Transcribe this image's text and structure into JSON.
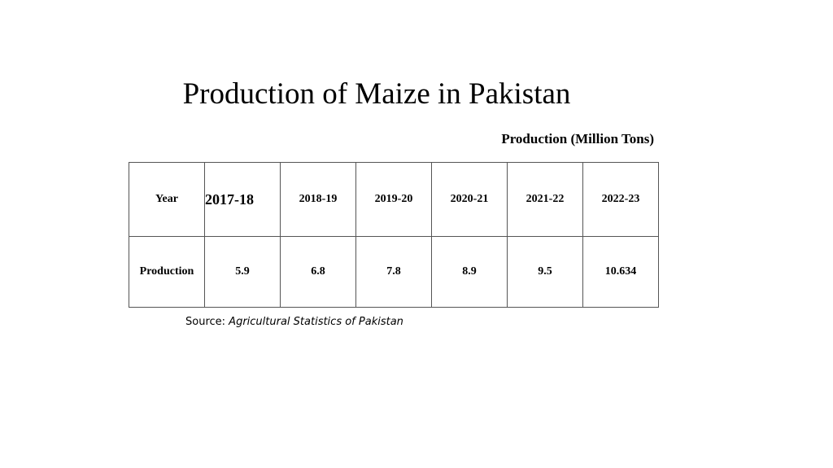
{
  "title": "Production of Maize in Pakistan",
  "unit_label": "Production (Million Tons)",
  "table": {
    "rows": [
      [
        "Year",
        "2017-18",
        "2018-19",
        "2019-20",
        "2020-21",
        "2021-22",
        "2022-23"
      ],
      [
        "Production",
        "5.9",
        "6.8",
        "7.8",
        "8.9",
        "9.5",
        "10.634"
      ]
    ]
  },
  "source": {
    "label": "Source:",
    "text": "Agricultural Statistics of Pakistan"
  }
}
